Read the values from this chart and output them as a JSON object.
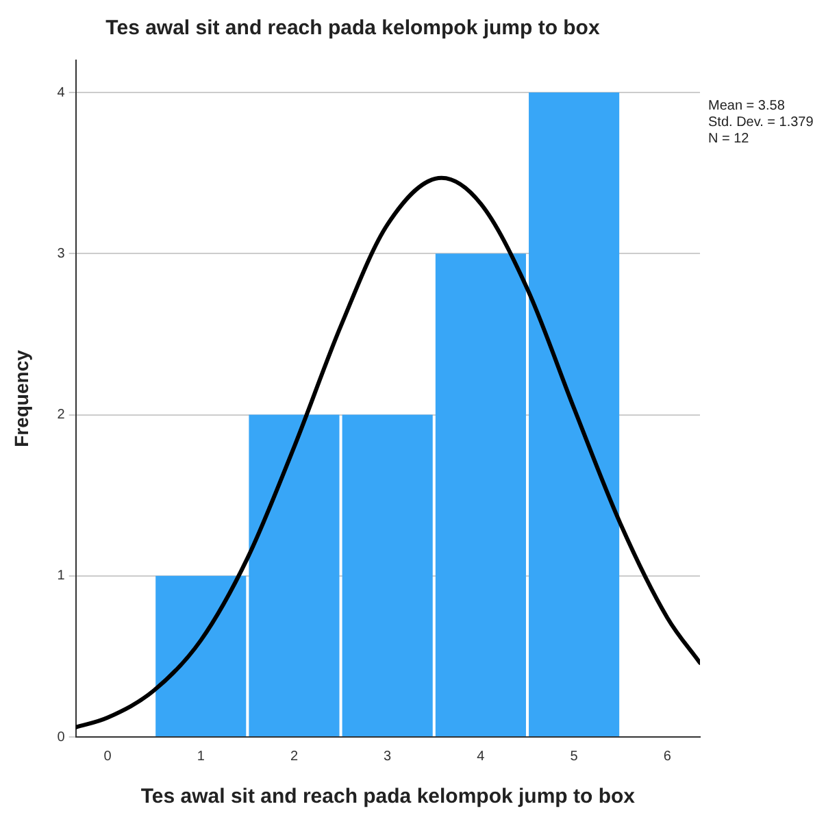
{
  "chart_data": {
    "type": "histogram",
    "title": "Tes awal sit and reach pada kelompok jump to box",
    "xlabel": "Tes awal sit and reach pada kelompok jump to box",
    "ylabel": "Frequency",
    "bins": [
      0.5,
      1.5,
      2.5,
      3.5,
      4.5,
      5.5
    ],
    "values": [
      1,
      2,
      2,
      3,
      4
    ],
    "color": "#38a6f7",
    "series": [
      {
        "type": "line",
        "color": "#000000",
        "x": [
          -0.34,
          0,
          0.5,
          1,
          1.5,
          2,
          2.5,
          3,
          3.58,
          4,
          4.5,
          5,
          5.5,
          6,
          6.35
        ],
        "values": [
          0.06,
          0.12,
          0.29,
          0.6,
          1.11,
          1.8,
          2.55,
          3.18,
          3.47,
          3.31,
          2.78,
          2.04,
          1.32,
          0.74,
          0.46
        ]
      }
    ],
    "xlim": [
      -0.34,
      6.35
    ],
    "xticks": [
      0,
      1,
      2,
      3,
      4,
      5,
      6
    ],
    "ylim": [
      0,
      4.2
    ],
    "yticks": [
      0,
      1,
      2,
      3,
      4
    ],
    "grid": "y",
    "legend": false,
    "marker": "none",
    "line_style": "solid",
    "annotations": [
      "Mean = 3.58",
      "Std. Dev. = 1.379",
      "N = 12"
    ]
  }
}
